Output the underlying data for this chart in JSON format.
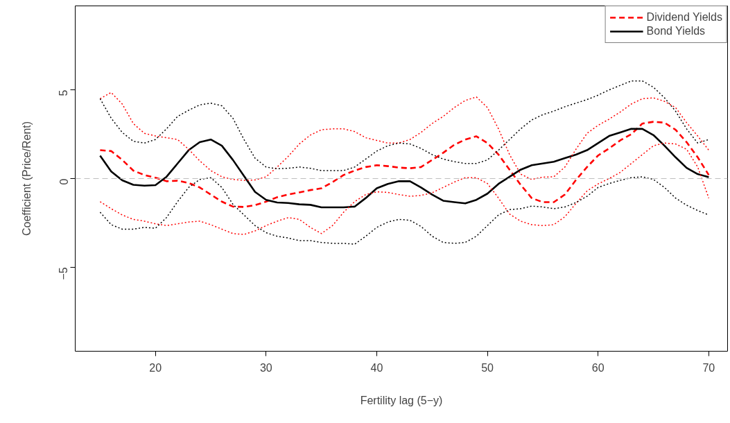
{
  "chart_data": {
    "type": "line",
    "xlabel": "Fertility lag (5−y)",
    "ylabel": "Coefficient (Price/Rent)",
    "x": [
      15,
      16,
      17,
      18,
      19,
      20,
      21,
      22,
      23,
      24,
      25,
      26,
      27,
      28,
      29,
      30,
      31,
      32,
      33,
      34,
      35,
      36,
      37,
      38,
      39,
      40,
      41,
      42,
      43,
      44,
      45,
      46,
      47,
      48,
      49,
      50,
      51,
      52,
      53,
      54,
      55,
      56,
      57,
      58,
      59,
      60,
      61,
      62,
      63,
      64,
      65,
      66,
      67,
      68,
      69,
      70
    ],
    "series": [
      {
        "name": "Dividend Yields",
        "color": "#ff0000",
        "line_style": "dashed",
        "values": [
          1.6,
          1.55,
          1.05,
          0.45,
          0.2,
          0.05,
          -0.15,
          -0.12,
          -0.25,
          -0.5,
          -0.9,
          -1.3,
          -1.58,
          -1.6,
          -1.5,
          -1.3,
          -1.05,
          -0.9,
          -0.78,
          -0.65,
          -0.55,
          -0.2,
          0.2,
          0.45,
          0.65,
          0.75,
          0.7,
          0.62,
          0.58,
          0.65,
          1.05,
          1.45,
          1.9,
          2.2,
          2.38,
          2.0,
          1.35,
          0.5,
          -0.35,
          -1.1,
          -1.33,
          -1.33,
          -0.9,
          -0.08,
          0.65,
          1.3,
          1.7,
          2.15,
          2.5,
          3.1,
          3.2,
          3.15,
          2.75,
          2.05,
          1.2,
          0.2
        ]
      },
      {
        "name": "Bond Yields",
        "color": "#000000",
        "line_style": "solid",
        "values": [
          1.29,
          0.4,
          -0.1,
          -0.35,
          -0.4,
          -0.37,
          0.1,
          0.85,
          1.6,
          2.05,
          2.2,
          1.85,
          1.05,
          0.15,
          -0.75,
          -1.2,
          -1.35,
          -1.38,
          -1.45,
          -1.48,
          -1.62,
          -1.62,
          -1.62,
          -1.58,
          -1.1,
          -0.55,
          -0.3,
          -0.15,
          -0.15,
          -0.5,
          -0.9,
          -1.25,
          -1.33,
          -1.4,
          -1.2,
          -0.85,
          -0.3,
          0.1,
          0.5,
          0.75,
          0.85,
          0.95,
          1.15,
          1.35,
          1.6,
          2.0,
          2.4,
          2.6,
          2.8,
          2.8,
          2.45,
          1.85,
          1.2,
          0.6,
          0.25,
          0.08
        ]
      },
      {
        "color": "#ff0000",
        "line_style": "dotted",
        "values": [
          4.5,
          4.85,
          4.2,
          3.1,
          2.55,
          2.4,
          2.3,
          2.2,
          1.65,
          1.0,
          0.45,
          0.1,
          -0.05,
          -0.1,
          -0.08,
          0.1,
          0.65,
          1.25,
          1.95,
          2.45,
          2.75,
          2.8,
          2.8,
          2.65,
          2.3,
          2.15,
          2.0,
          2.0,
          2.2,
          2.6,
          3.1,
          3.5,
          4.0,
          4.4,
          4.6,
          4.0,
          2.8,
          1.35,
          0.25,
          -0.05,
          0.08,
          0.1,
          0.65,
          1.65,
          2.55,
          3.0,
          3.35,
          3.75,
          4.2,
          4.5,
          4.55,
          4.35,
          4.0,
          3.15,
          2.4,
          1.6
        ]
      },
      {
        "color": "#ff0000",
        "line_style": "dotted",
        "values": [
          -1.3,
          -1.7,
          -2.05,
          -2.3,
          -2.4,
          -2.55,
          -2.65,
          -2.55,
          -2.45,
          -2.4,
          -2.6,
          -2.85,
          -3.1,
          -3.15,
          -2.95,
          -2.65,
          -2.4,
          -2.2,
          -2.3,
          -2.75,
          -3.1,
          -2.65,
          -1.9,
          -1.3,
          -0.9,
          -0.75,
          -0.78,
          -0.9,
          -1.0,
          -0.95,
          -0.8,
          -0.5,
          -0.2,
          0.05,
          0.05,
          -0.28,
          -1.1,
          -2.0,
          -2.4,
          -2.6,
          -2.65,
          -2.6,
          -2.15,
          -1.4,
          -0.7,
          -0.3,
          0.0,
          0.35,
          0.85,
          1.35,
          1.85,
          2.0,
          1.95,
          1.65,
          0.65,
          -1.1
        ]
      },
      {
        "color": "#000000",
        "line_style": "dotted",
        "values": [
          4.5,
          3.4,
          2.6,
          2.1,
          2.0,
          2.2,
          2.8,
          3.5,
          3.85,
          4.15,
          4.25,
          4.1,
          3.4,
          2.2,
          1.15,
          0.65,
          0.55,
          0.58,
          0.65,
          0.58,
          0.45,
          0.45,
          0.45,
          0.65,
          1.1,
          1.55,
          1.85,
          2.0,
          1.95,
          1.7,
          1.35,
          1.1,
          0.95,
          0.85,
          0.85,
          1.05,
          1.6,
          2.2,
          2.8,
          3.3,
          3.6,
          3.8,
          4.05,
          4.25,
          4.45,
          4.7,
          5.0,
          5.25,
          5.5,
          5.5,
          5.15,
          4.55,
          3.8,
          2.8,
          2.0,
          2.2
        ]
      },
      {
        "color": "#000000",
        "line_style": "dotted",
        "values": [
          -1.9,
          -2.6,
          -2.85,
          -2.85,
          -2.75,
          -2.8,
          -2.2,
          -1.3,
          -0.5,
          -0.05,
          0.05,
          -0.5,
          -1.45,
          -2.05,
          -2.65,
          -3.05,
          -3.25,
          -3.35,
          -3.5,
          -3.5,
          -3.6,
          -3.65,
          -3.65,
          -3.7,
          -3.25,
          -2.75,
          -2.45,
          -2.3,
          -2.35,
          -2.7,
          -3.25,
          -3.6,
          -3.65,
          -3.6,
          -3.25,
          -2.65,
          -2.05,
          -1.75,
          -1.7,
          -1.55,
          -1.6,
          -1.7,
          -1.6,
          -1.35,
          -1.0,
          -0.5,
          -0.28,
          -0.1,
          0.05,
          0.1,
          -0.05,
          -0.5,
          -1.1,
          -1.5,
          -1.8,
          -2.05
        ]
      }
    ],
    "xlim": [
      12.75,
      71.7
    ],
    "ylim": [
      -9.73,
      9.73
    ],
    "xticks": [
      20,
      30,
      40,
      50,
      60,
      70
    ],
    "yticks": [
      {
        "value": -5,
        "label": "−5"
      },
      0,
      5
    ],
    "ref_lines": [
      {
        "axis": "y",
        "value": 0,
        "color": "#bebebe",
        "line_style": "dashed"
      }
    ],
    "grid": false,
    "legend": "top right"
  }
}
